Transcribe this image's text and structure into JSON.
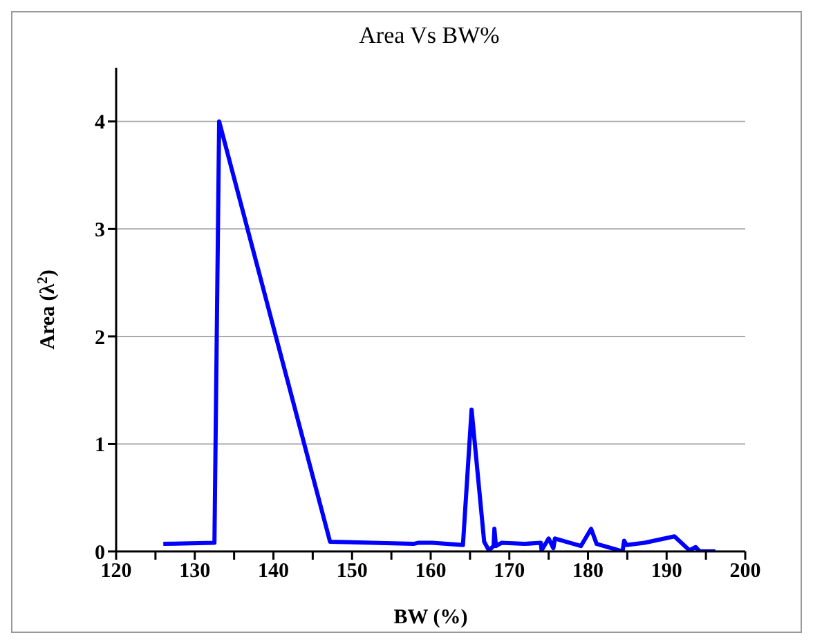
{
  "chart_data": {
    "type": "line",
    "title": "Area Vs BW%",
    "xlabel": "BW (%)",
    "ylabel": "Area (λ$^{2}$)",
    "x": [
      126.0,
      132.5,
      133.1,
      147.2,
      157.8,
      158.4,
      160.2,
      164.1,
      165.2,
      166.8,
      167.4,
      168.0,
      168.1,
      168.3,
      169.0,
      171.9,
      174.0,
      174.1,
      175.0,
      175.6,
      175.8,
      179.1,
      180.4,
      181.1,
      184.4,
      184.6,
      184.9,
      187.2,
      191.0,
      192.9,
      193.7,
      194.2,
      196.2
    ],
    "series": [
      {
        "color": "#0000ff",
        "values": [
          0.07,
          0.08,
          4.0,
          0.09,
          0.07,
          0.08,
          0.08,
          0.06,
          1.32,
          0.09,
          0.01,
          0.05,
          0.21,
          0.05,
          0.08,
          0.07,
          0.08,
          0.01,
          0.12,
          0.03,
          0.12,
          0.05,
          0.21,
          0.07,
          0.0,
          0.1,
          0.06,
          0.08,
          0.14,
          0.01,
          0.04,
          0.0,
          0.0
        ]
      }
    ],
    "xlim": [
      120,
      200
    ],
    "xticks": [
      120,
      {
        "value": 125,
        "label": null
      },
      130,
      {
        "value": 135,
        "label": null
      },
      140,
      {
        "value": 145,
        "label": null
      },
      150,
      {
        "value": 155,
        "label": null
      },
      160,
      {
        "value": 165,
        "label": null
      },
      170,
      {
        "value": 175,
        "label": null
      },
      180,
      {
        "value": 185,
        "label": null
      },
      190,
      {
        "value": 195,
        "label": null
      },
      200
    ],
    "ylim": [
      0,
      4.5
    ],
    "yticks": [
      0,
      1,
      2,
      3,
      4
    ],
    "grid": "y",
    "legend": false,
    "marker": "none",
    "line_style": "solid"
  }
}
